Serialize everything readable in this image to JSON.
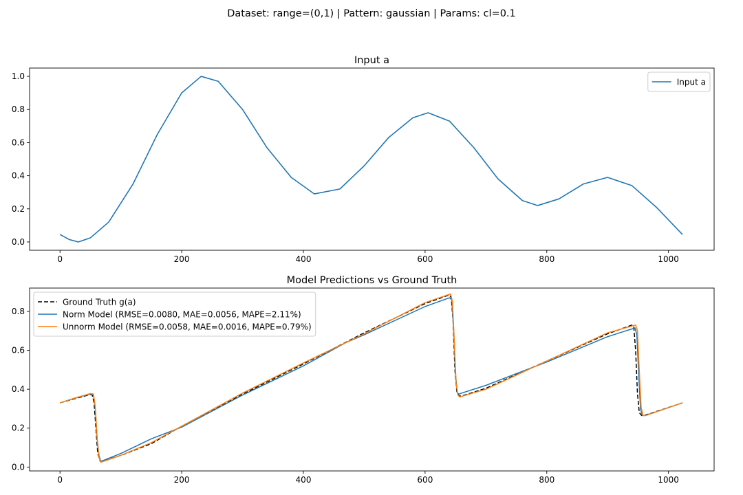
{
  "figure": {
    "suptitle": "Dataset: range=(0,1) | Pattern: gaussian | Params: cl=0.1"
  },
  "colors": {
    "input": "#1f77b4",
    "norm": "#1f77b4",
    "unnorm": "#ff7f0e",
    "ground_truth": "#000000"
  },
  "chart_data": [
    {
      "type": "line",
      "title": "Input a",
      "xlabel": "",
      "ylabel": "",
      "xlim": [
        -50,
        1075
      ],
      "ylim": [
        -0.05,
        1.05
      ],
      "xticks": [
        0,
        200,
        400,
        600,
        800,
        1000
      ],
      "xtick_labels": [
        "0",
        "200",
        "400",
        "600",
        "800",
        "1000"
      ],
      "yticks": [
        0.0,
        0.2,
        0.4,
        0.6,
        0.8,
        1.0
      ],
      "ytick_labels": [
        "0.0",
        "0.2",
        "0.4",
        "0.6",
        "0.8",
        "1.0"
      ],
      "grid": false,
      "legend": "upper right",
      "series": [
        {
          "name": "Input a",
          "color": "#1f77b4",
          "dash": "",
          "x": [
            0,
            15,
            30,
            50,
            80,
            120,
            160,
            200,
            232,
            260,
            300,
            340,
            380,
            418,
            460,
            500,
            540,
            580,
            605,
            640,
            680,
            720,
            760,
            785,
            820,
            860,
            900,
            940,
            980,
            1023
          ],
          "y": [
            0.045,
            0.015,
            0.0,
            0.025,
            0.12,
            0.35,
            0.65,
            0.9,
            1.0,
            0.97,
            0.8,
            0.57,
            0.39,
            0.29,
            0.32,
            0.46,
            0.63,
            0.75,
            0.78,
            0.73,
            0.57,
            0.38,
            0.25,
            0.22,
            0.26,
            0.35,
            0.39,
            0.34,
            0.21,
            0.045
          ]
        }
      ]
    },
    {
      "type": "line",
      "title": "Model Predictions vs Ground Truth",
      "xlabel": "",
      "ylabel": "",
      "xlim": [
        -50,
        1075
      ],
      "ylim": [
        -0.02,
        0.92
      ],
      "xticks": [
        0,
        200,
        400,
        600,
        800,
        1000
      ],
      "xtick_labels": [
        "0",
        "200",
        "400",
        "600",
        "800",
        "1000"
      ],
      "yticks": [
        0.0,
        0.2,
        0.4,
        0.6,
        0.8
      ],
      "ytick_labels": [
        "0.0",
        "0.2",
        "0.4",
        "0.6",
        "0.8"
      ],
      "grid": false,
      "legend": "upper left",
      "series": [
        {
          "name": "Ground Truth g(a)",
          "color": "#000000",
          "dash": "6 3",
          "x": [
            0,
            25,
            50,
            53,
            56,
            59,
            62,
            66,
            70,
            100,
            150,
            200,
            300,
            400,
            500,
            600,
            640,
            643,
            646,
            649,
            652,
            656,
            660,
            700,
            800,
            900,
            940,
            943,
            946,
            949,
            952,
            956,
            960,
            1023
          ],
          "y": [
            0.33,
            0.352,
            0.373,
            0.37,
            0.33,
            0.2,
            0.07,
            0.03,
            0.03,
            0.06,
            0.12,
            0.21,
            0.375,
            0.53,
            0.69,
            0.84,
            0.885,
            0.87,
            0.75,
            0.5,
            0.39,
            0.365,
            0.365,
            0.405,
            0.545,
            0.685,
            0.73,
            0.72,
            0.6,
            0.38,
            0.28,
            0.265,
            0.265,
            0.33
          ]
        },
        {
          "name": "Norm Model (RMSE=0.0080, MAE=0.0056, MAPE=2.11%)",
          "color": "#1f77b4",
          "dash": "",
          "x": [
            0,
            25,
            50,
            55,
            58,
            61,
            64,
            67,
            72,
            100,
            150,
            200,
            300,
            400,
            470,
            500,
            600,
            640,
            644,
            647,
            650,
            653,
            656,
            660,
            700,
            800,
            900,
            945,
            948,
            951,
            954,
            957,
            962,
            1023
          ],
          "y": [
            0.33,
            0.355,
            0.375,
            0.37,
            0.3,
            0.15,
            0.06,
            0.03,
            0.035,
            0.07,
            0.145,
            0.205,
            0.37,
            0.52,
            0.64,
            0.68,
            0.825,
            0.87,
            0.86,
            0.7,
            0.48,
            0.38,
            0.375,
            0.38,
            0.42,
            0.54,
            0.67,
            0.715,
            0.68,
            0.48,
            0.3,
            0.265,
            0.265,
            0.33
          ]
        },
        {
          "name": "Unnorm Model (RMSE=0.0058, MAE=0.0016, MAPE=0.79%)",
          "color": "#ff7f0e",
          "dash": "",
          "x": [
            0,
            25,
            50,
            55,
            58,
            61,
            64,
            67,
            72,
            100,
            150,
            200,
            300,
            400,
            500,
            600,
            642,
            645,
            648,
            651,
            654,
            657,
            662,
            700,
            800,
            900,
            946,
            949,
            952,
            955,
            958,
            963,
            1023
          ],
          "y": [
            0.33,
            0.355,
            0.378,
            0.375,
            0.31,
            0.15,
            0.05,
            0.025,
            0.03,
            0.06,
            0.125,
            0.21,
            0.38,
            0.535,
            0.685,
            0.845,
            0.89,
            0.85,
            0.65,
            0.43,
            0.37,
            0.36,
            0.365,
            0.4,
            0.545,
            0.69,
            0.73,
            0.7,
            0.5,
            0.31,
            0.265,
            0.265,
            0.33
          ]
        }
      ]
    }
  ]
}
